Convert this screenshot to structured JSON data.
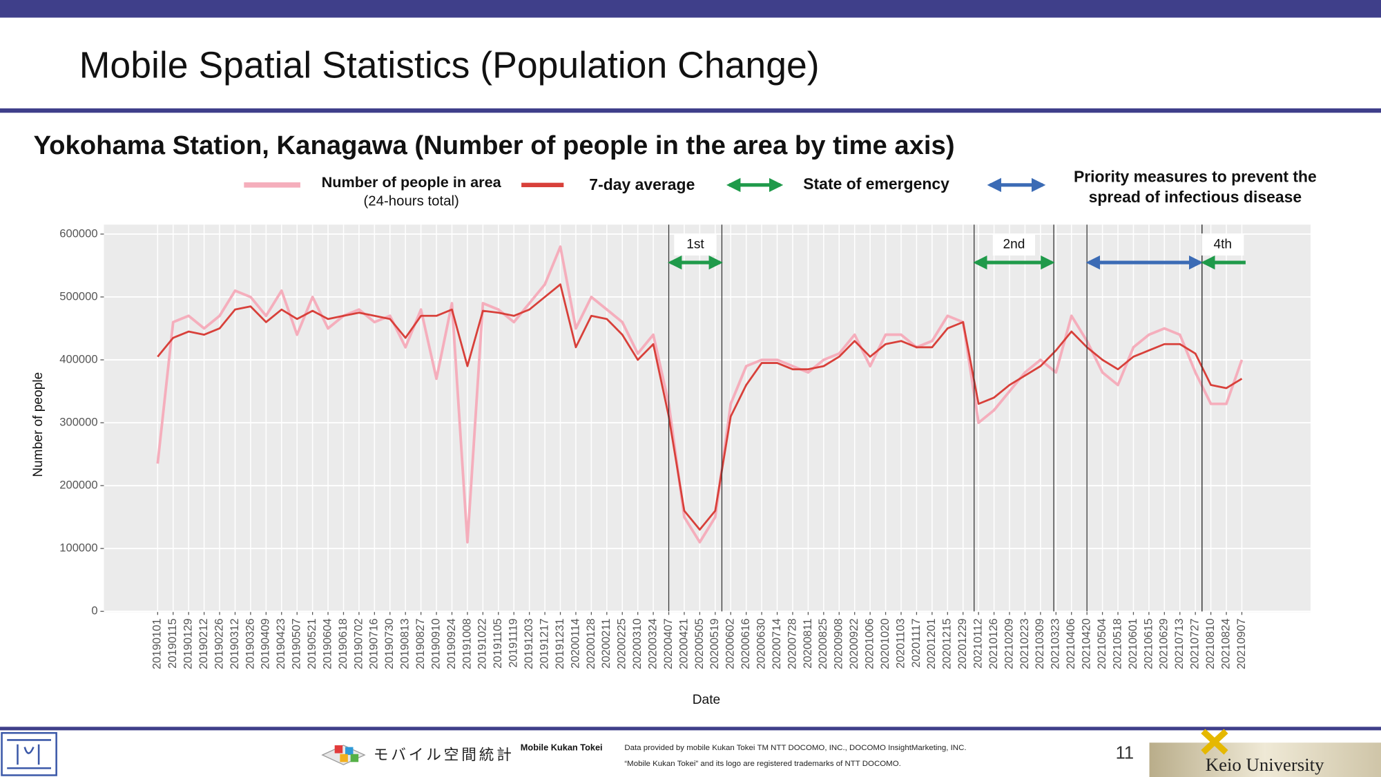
{
  "page": {
    "title": "Mobile Spatial Statistics (Population Change)",
    "page_number": "11",
    "university": "Keio University",
    "logo_text": "モバイル空間統計",
    "footer_brand": "Mobile Kukan Tokei",
    "footer_lines": [
      "Data provided by mobile Kukan Tokei TM NTT DOCOMO, INC., DOCOMO InsightMarketing, INC.",
      "“Mobile Kukan Tokei” and its logo are registered trademarks of NTT DOCOMO."
    ]
  },
  "chart_data": {
    "type": "line",
    "title": "Yokohama Station, Kanagawa (Number of people in the area by time axis)",
    "x_label": "Date",
    "y_label": "Number of people",
    "categories": [
      "20190101",
      "20190115",
      "20190129",
      "20190212",
      "20190226",
      "20190312",
      "20190326",
      "20190409",
      "20190423",
      "20190507",
      "20190521",
      "20190604",
      "20190618",
      "20190702",
      "20190716",
      "20190730",
      "20190813",
      "20190827",
      "20190910",
      "20190924",
      "20191008",
      "20191022",
      "20191105",
      "20191119",
      "20191203",
      "20191217",
      "20191231",
      "20200114",
      "20200128",
      "20200211",
      "20200225",
      "20200310",
      "20200324",
      "20200407",
      "20200421",
      "20200505",
      "20200519",
      "20200602",
      "20200616",
      "20200630",
      "20200714",
      "20200728",
      "20200811",
      "20200825",
      "20200908",
      "20200922",
      "20201006",
      "20201020",
      "20201103",
      "20201117",
      "20201201",
      "20201215",
      "20201229",
      "20210112",
      "20210126",
      "20210209",
      "20210223",
      "20210309",
      "20210323",
      "20210406",
      "20210420",
      "20210504",
      "20210518",
      "20210601",
      "20210615",
      "20210629",
      "20210713",
      "20210727",
      "20210810",
      "20210824",
      "20210907"
    ],
    "series": [
      {
        "name": "Number of people in area",
        "note": "(24-hours total)",
        "color": "#f5aebc",
        "values": [
          235000,
          460000,
          470000,
          450000,
          470000,
          510000,
          500000,
          470000,
          510000,
          440000,
          500000,
          450000,
          470000,
          480000,
          460000,
          470000,
          420000,
          480000,
          370000,
          490000,
          110000,
          490000,
          480000,
          460000,
          490000,
          520000,
          580000,
          450000,
          500000,
          480000,
          460000,
          410000,
          440000,
          330000,
          150000,
          110000,
          150000,
          330000,
          390000,
          400000,
          400000,
          390000,
          380000,
          400000,
          410000,
          440000,
          390000,
          440000,
          440000,
          420000,
          430000,
          470000,
          460000,
          300000,
          320000,
          350000,
          380000,
          400000,
          380000,
          470000,
          430000,
          380000,
          360000,
          420000,
          440000,
          450000,
          440000,
          380000,
          330000,
          330000,
          400000
        ]
      },
      {
        "name": "7-day average",
        "color": "#d8403a",
        "values": [
          405000,
          435000,
          445000,
          440000,
          450000,
          480000,
          485000,
          460000,
          480000,
          465000,
          478000,
          465000,
          470000,
          475000,
          470000,
          465000,
          435000,
          470000,
          470000,
          480000,
          390000,
          478000,
          475000,
          470000,
          480000,
          500000,
          520000,
          420000,
          470000,
          465000,
          440000,
          400000,
          425000,
          310000,
          160000,
          130000,
          160000,
          310000,
          360000,
          395000,
          395000,
          385000,
          385000,
          390000,
          405000,
          430000,
          405000,
          425000,
          430000,
          420000,
          420000,
          450000,
          460000,
          330000,
          340000,
          360000,
          375000,
          390000,
          415000,
          445000,
          420000,
          400000,
          385000,
          405000,
          415000,
          425000,
          425000,
          410000,
          360000,
          355000,
          370000
        ]
      }
    ],
    "period_kinds": [
      {
        "name": [
          "State of emergency"
        ],
        "color": "#1f9a4a"
      },
      {
        "name": [
          "Priority measures to prevent the",
          "spread of infectious disease"
        ],
        "color": "#3b6bb5"
      }
    ],
    "periods": [
      {
        "kind": 0,
        "label": "1st",
        "start": "20200407",
        "end": "20200525"
      },
      {
        "kind": 0,
        "label": "2nd",
        "start": "20210108",
        "end": "20210321"
      },
      {
        "kind": 1,
        "start": "20210420",
        "end": "20210802"
      },
      {
        "kind": 0,
        "label": "4th",
        "start": "20210802",
        "end": "20210912",
        "open_end": true
      }
    ],
    "ylim": [
      0,
      615000
    ],
    "yticks": [
      0,
      100000,
      200000,
      300000,
      400000,
      500000,
      600000
    ],
    "grid": true
  }
}
